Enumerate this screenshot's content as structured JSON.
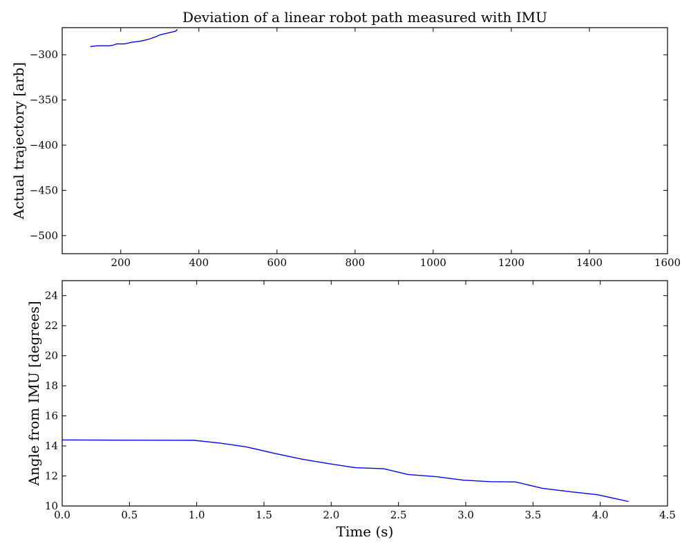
{
  "figure": {
    "title": "Deviation of a linear robot path measured with IMU"
  },
  "chart_data": [
    {
      "type": "line",
      "title": "Deviation of a linear robot path measured with IMU",
      "xlabel": "",
      "ylabel": "Actual trajectory [arb]",
      "xlim": [
        50,
        1600
      ],
      "ylim": [
        -520,
        -270
      ],
      "x_ticks": [
        200,
        400,
        600,
        800,
        1000,
        1200,
        1400,
        1600
      ],
      "y_ticks": [
        -300,
        -350,
        -400,
        -450,
        -500
      ],
      "grid": false,
      "line_color": "#0000ff",
      "series": [
        {
          "x": [
            122,
            130,
            140,
            150,
            160,
            170,
            180,
            190,
            200,
            210,
            220,
            230,
            240,
            250,
            260,
            270,
            280,
            290,
            300,
            310,
            320,
            330,
            340,
            345
          ],
          "y": [
            -291,
            -290.5,
            -290,
            -290,
            -290,
            -290,
            -289.5,
            -288,
            -288,
            -288,
            -287,
            -286,
            -285.5,
            -285,
            -284,
            -283,
            -281.5,
            -280,
            -278,
            -277,
            -276,
            -275,
            -274,
            -272
          ]
        }
      ]
    },
    {
      "type": "line",
      "title": "",
      "xlabel": "Time (s)",
      "ylabel": "Angle from IMU [degrees]",
      "xlim": [
        0,
        4.5
      ],
      "ylim": [
        10,
        25
      ],
      "x_ticks": [
        "0.0",
        "0.5",
        "1.0",
        "1.5",
        "2.0",
        "2.5",
        "3.0",
        "3.5",
        "4.0",
        "4.5"
      ],
      "y_ticks": [
        10,
        12,
        14,
        16,
        18,
        20,
        22,
        24
      ],
      "grid": false,
      "line_color": "#0000ff",
      "series": [
        {
          "x": [
            0.0,
            0.5,
            0.98,
            1.18,
            1.37,
            1.58,
            1.78,
            1.98,
            2.18,
            2.39,
            2.57,
            2.78,
            2.98,
            3.18,
            3.37,
            3.57,
            3.78,
            3.98,
            4.21
          ],
          "y": [
            14.4,
            14.38,
            14.37,
            14.18,
            13.93,
            13.5,
            13.12,
            12.82,
            12.55,
            12.48,
            12.1,
            11.95,
            11.72,
            11.62,
            11.6,
            11.18,
            10.95,
            10.75,
            10.3
          ]
        }
      ]
    }
  ]
}
